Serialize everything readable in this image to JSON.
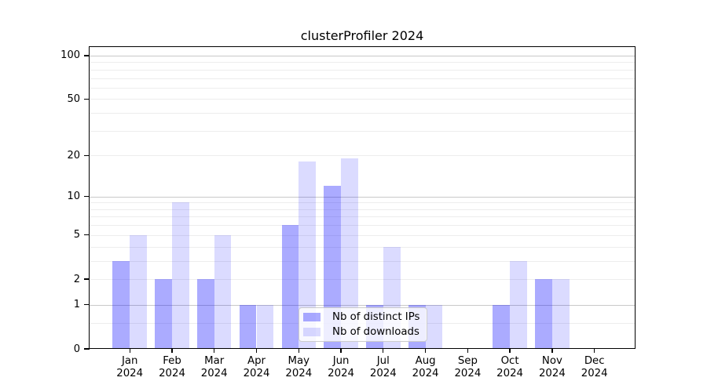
{
  "chart_data": {
    "type": "bar",
    "title": "clusterProfiler 2024",
    "categories": [
      "Jan 2024",
      "Feb 2024",
      "Mar 2024",
      "Apr 2024",
      "May 2024",
      "Jun 2024",
      "Jul 2024",
      "Aug 2024",
      "Sep 2024",
      "Oct 2024",
      "Nov 2024",
      "Dec 2024"
    ],
    "series": [
      {
        "name": "Nb of distinct IPs",
        "color": "rgba(0,0,255,0.33)",
        "values": [
          3,
          2,
          2,
          1,
          6,
          12,
          1,
          1,
          0,
          1,
          2,
          0
        ]
      },
      {
        "name": "Nb of downloads",
        "color": "rgba(0,0,255,0.14)",
        "values": [
          5,
          9,
          5,
          1,
          18,
          19,
          4,
          1,
          0,
          3,
          2,
          0
        ]
      }
    ],
    "xlabel": "",
    "ylabel": "",
    "yscale": "log1p",
    "ylim": [
      0,
      116
    ],
    "yticks": [
      0,
      1,
      2,
      5,
      10,
      20,
      50,
      100
    ],
    "grid_major": [
      1,
      10,
      100
    ],
    "grid_minor": [
      0.5,
      2,
      3,
      4,
      5,
      6,
      7,
      8,
      9,
      20,
      30,
      40,
      50,
      60,
      70,
      80,
      90
    ],
    "grid": "on",
    "legend_position": "lower center",
    "colors": {
      "grid_major": "#c9c9c9",
      "grid_minor": "#ededed",
      "axis": "#000000",
      "legend_border": "#cccccc",
      "legend_background": "rgba(255,255,255,0.8)"
    }
  }
}
